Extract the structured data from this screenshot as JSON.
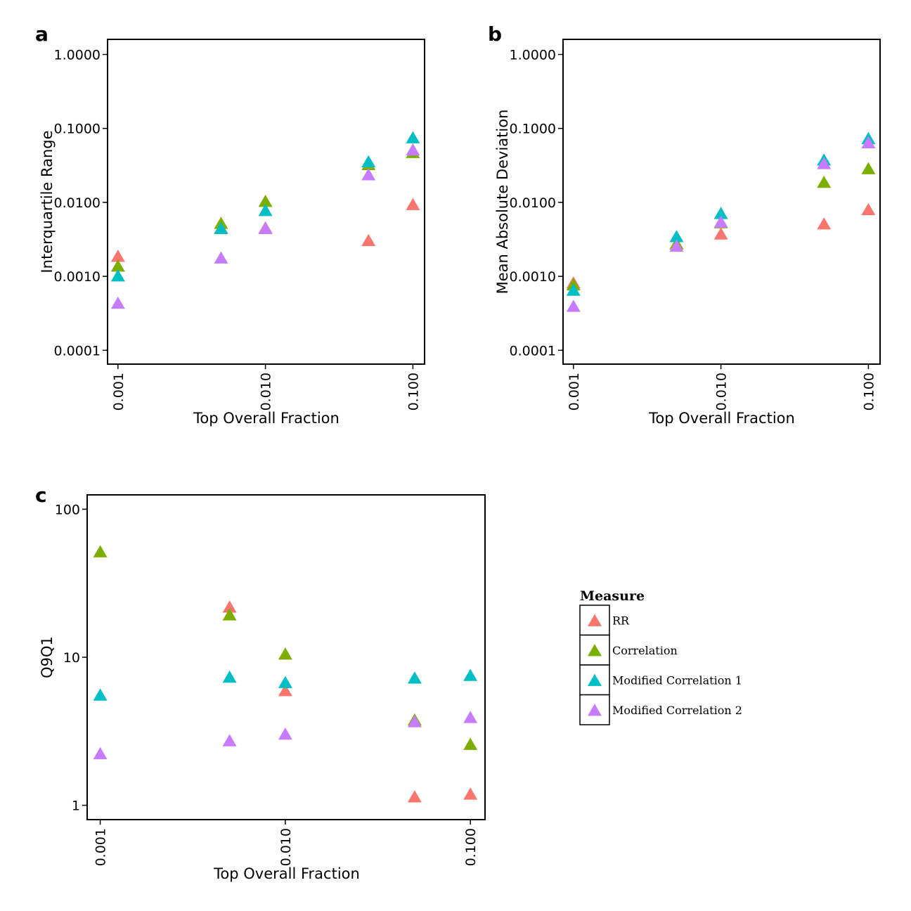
{
  "figure": {
    "panel_letters": [
      "a",
      "b",
      "c"
    ]
  },
  "legend": {
    "title": "Measure",
    "entries": [
      {
        "label": "RR",
        "color": "#F8766D"
      },
      {
        "label": "Correlation",
        "color": "#7CAE00"
      },
      {
        "label": "Modified Correlation 1",
        "color": "#00BFC4"
      },
      {
        "label": "Modified Correlation 2",
        "color": "#C77CFF"
      }
    ]
  },
  "chart_data": [
    {
      "panel": "a",
      "type": "scatter",
      "marker": "triangle",
      "xlabel": "Top Overall Fraction",
      "ylabel": "Interquartile Range",
      "x_scale": "log10",
      "y_scale": "log10",
      "xlim": [
        0.00085,
        0.12
      ],
      "ylim": [
        6.5e-05,
        1.6
      ],
      "x_ticks": [
        0.001,
        0.01,
        0.1
      ],
      "x_tick_labels": [
        "0.001",
        "0.010",
        "0.100"
      ],
      "y_ticks": [
        0.0001,
        0.001,
        0.01,
        0.1,
        1
      ],
      "y_tick_labels": [
        "0.0001",
        "0.0010",
        "0.0100",
        "0.1000",
        "1.0000"
      ],
      "x": [
        0.001,
        0.005,
        0.01,
        0.05,
        0.1
      ],
      "series": [
        {
          "name": "RR",
          "values": [
            0.0019,
            0.0046,
            0.0046,
            0.0031,
            0.0095
          ]
        },
        {
          "name": "Correlation",
          "values": [
            0.0014,
            0.0053,
            0.0105,
            0.033,
            0.048
          ]
        },
        {
          "name": "Modified Correlation 1",
          "values": [
            0.00103,
            0.0045,
            0.0079,
            0.036,
            0.076
          ]
        },
        {
          "name": "Modified Correlation 2",
          "values": [
            0.00044,
            0.0018,
            0.0045,
            0.024,
            0.052
          ]
        }
      ]
    },
    {
      "panel": "b",
      "type": "scatter",
      "marker": "triangle",
      "xlabel": "Top Overall Fraction",
      "ylabel": "Mean Absolute Deviation",
      "x_scale": "log10",
      "y_scale": "log10",
      "xlim": [
        0.00085,
        0.12
      ],
      "ylim": [
        6.5e-05,
        1.6
      ],
      "x_ticks": [
        0.001,
        0.01,
        0.1
      ],
      "x_tick_labels": [
        "0.001",
        "0.010",
        "0.100"
      ],
      "y_ticks": [
        0.0001,
        0.001,
        0.01,
        0.1,
        1
      ],
      "y_tick_labels": [
        "0.0001",
        "0.0010",
        "0.0100",
        "0.1000",
        "1.0000"
      ],
      "x": [
        0.001,
        0.005,
        0.01,
        0.05,
        0.1
      ],
      "series": [
        {
          "name": "RR",
          "values": [
            0.00083,
            0.0028,
            0.0038,
            0.0052,
            0.0081
          ]
        },
        {
          "name": "Correlation",
          "values": [
            0.00078,
            0.0028,
            0.0054,
            0.019,
            0.029
          ]
        },
        {
          "name": "Modified Correlation 1",
          "values": [
            0.00066,
            0.0035,
            0.0072,
            0.038,
            0.074
          ]
        },
        {
          "name": "Modified Correlation 2",
          "values": [
            0.0004,
            0.0026,
            0.0055,
            0.034,
            0.065
          ]
        }
      ]
    },
    {
      "panel": "c",
      "type": "scatter",
      "marker": "triangle",
      "xlabel": "Top Overall Fraction",
      "ylabel": "Q9Q1",
      "x_scale": "log10",
      "y_scale": "log10",
      "xlim": [
        0.00085,
        0.12
      ],
      "ylim": [
        0.8,
        125
      ],
      "x_ticks": [
        0.001,
        0.01,
        0.1
      ],
      "x_tick_labels": [
        "0.001",
        "0.010",
        "0.100"
      ],
      "y_ticks": [
        1,
        10,
        100
      ],
      "y_tick_labels": [
        "1",
        "10",
        "100"
      ],
      "x": [
        0.001,
        0.005,
        0.01,
        0.05,
        0.1
      ],
      "series": [
        {
          "name": "RR",
          "values": [
            null,
            22,
            6.0,
            1.15,
            1.2
          ]
        },
        {
          "name": "Correlation",
          "values": [
            52,
            19.5,
            10.6,
            3.8,
            2.6
          ]
        },
        {
          "name": "Modified Correlation 1",
          "values": [
            5.6,
            7.4,
            6.8,
            7.3,
            7.6
          ]
        },
        {
          "name": "Modified Correlation 2",
          "values": [
            2.25,
            2.75,
            3.05,
            3.7,
            3.95
          ]
        }
      ]
    }
  ]
}
